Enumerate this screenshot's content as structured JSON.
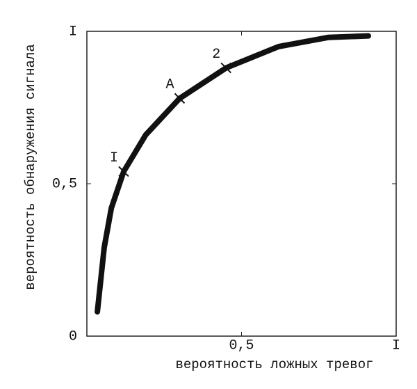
{
  "chart_data": {
    "type": "line",
    "x_label": "вероятность ложных тревог",
    "y_label": "вероятность обнаружения сигнала",
    "x": [
      0.034,
      0.056,
      0.079,
      0.119,
      0.19,
      0.3,
      0.45,
      0.62,
      0.78,
      0.91
    ],
    "values": [
      0.08,
      0.29,
      0.42,
      0.54,
      0.66,
      0.78,
      0.88,
      0.95,
      0.98,
      0.985
    ],
    "color": "#111111",
    "xlim": [
      0,
      1
    ],
    "ylim": [
      0,
      1
    ],
    "xticks": [
      {
        "value": 0.5,
        "label": "0,5"
      },
      {
        "value": 1,
        "label": "I"
      }
    ],
    "yticks": [
      0,
      {
        "value": 0.5,
        "label": "0,5"
      },
      {
        "value": 1,
        "label": "I"
      }
    ],
    "annotations": [
      {
        "text": "I",
        "x": 0.119,
        "y": 0.54
      },
      {
        "text": "A",
        "x": 0.3,
        "y": 0.78
      },
      {
        "text": "2",
        "x": 0.45,
        "y": 0.88
      }
    ]
  }
}
